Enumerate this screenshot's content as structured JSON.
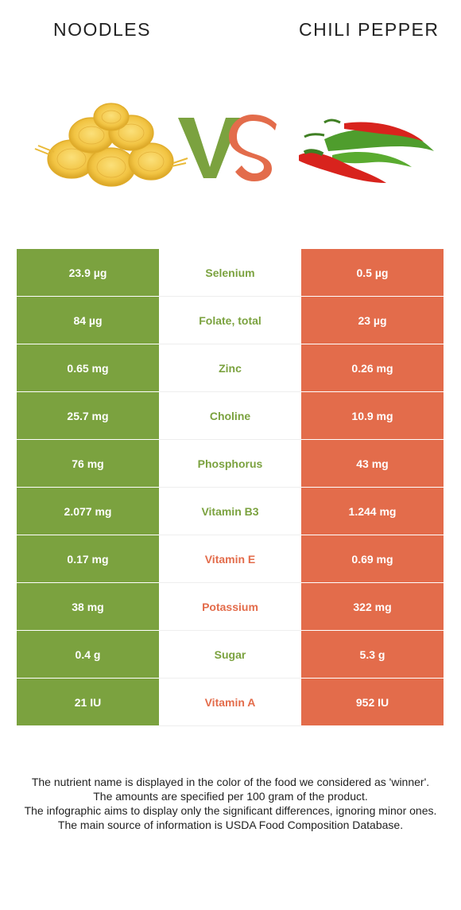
{
  "header": {
    "left_title": "NOODLES",
    "right_title": "CHILI PEPPER",
    "vs_left": "V",
    "vs_right": "S"
  },
  "colors": {
    "left_accent": "#7ba23f",
    "right_accent": "#e36c4b"
  },
  "rows": [
    {
      "nutrient": "Selenium",
      "left": "23.9 µg",
      "right": "0.5 µg",
      "winner": "left"
    },
    {
      "nutrient": "Folate, total",
      "left": "84 µg",
      "right": "23 µg",
      "winner": "left"
    },
    {
      "nutrient": "Zinc",
      "left": "0.65 mg",
      "right": "0.26 mg",
      "winner": "left"
    },
    {
      "nutrient": "Choline",
      "left": "25.7 mg",
      "right": "10.9 mg",
      "winner": "left"
    },
    {
      "nutrient": "Phosphorus",
      "left": "76 mg",
      "right": "43 mg",
      "winner": "left"
    },
    {
      "nutrient": "Vitamin B3",
      "left": "2.077 mg",
      "right": "1.244 mg",
      "winner": "left"
    },
    {
      "nutrient": "Vitamin E",
      "left": "0.17 mg",
      "right": "0.69 mg",
      "winner": "right"
    },
    {
      "nutrient": "Potassium",
      "left": "38 mg",
      "right": "322 mg",
      "winner": "right"
    },
    {
      "nutrient": "Sugar",
      "left": "0.4 g",
      "right": "5.3 g",
      "winner": "left"
    },
    {
      "nutrient": "Vitamin A",
      "left": "21 IU",
      "right": "952 IU",
      "winner": "right"
    }
  ],
  "notes": [
    "The nutrient name is displayed in the color of the food we considered as 'winner'.",
    "The amounts are specified per 100 gram of the product.",
    "The infographic aims to display only the significant differences, ignoring minor ones.",
    "The main source of information is USDA Food Composition Database."
  ]
}
